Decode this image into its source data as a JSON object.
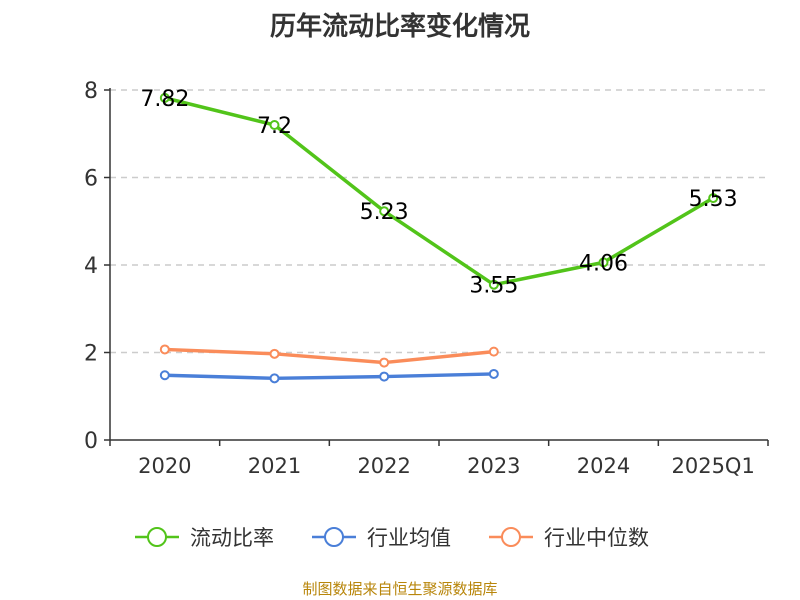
{
  "chart_data": {
    "type": "line",
    "title": "历年流动比率变化情况",
    "categories": [
      "2020",
      "2021",
      "2022",
      "2023",
      "2024",
      "2025Q1"
    ],
    "ylim": [
      0,
      8
    ],
    "yticks": [
      "0",
      "2",
      "4",
      "6",
      "8"
    ],
    "grid": true,
    "legend_position": "bottom",
    "series": [
      {
        "name": "流动比率",
        "color": "#52c41a",
        "show_labels": true,
        "values": [
          7.82,
          7.2,
          5.23,
          3.55,
          4.06,
          5.53
        ],
        "labels": [
          "7.82",
          "7.2",
          "5.23",
          "3.55",
          "4.06",
          "5.53"
        ]
      },
      {
        "name": "行业均值",
        "color": "#4a7fd8",
        "show_labels": false,
        "values": [
          1.48,
          1.41,
          1.45,
          1.51,
          null,
          null
        ]
      },
      {
        "name": "行业中位数",
        "color": "#fa8c5a",
        "show_labels": false,
        "values": [
          2.07,
          1.97,
          1.77,
          2.02,
          null,
          null
        ]
      }
    ]
  },
  "source_text": "制图数据来自恒生聚源数据库"
}
